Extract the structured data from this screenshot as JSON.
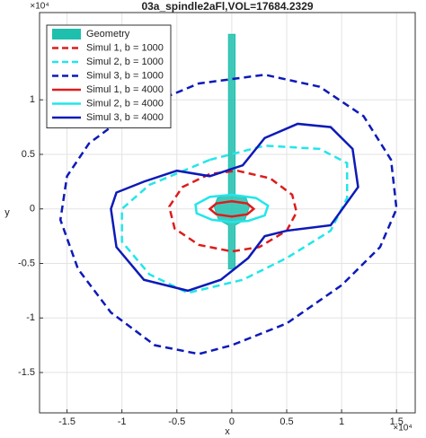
{
  "chart_data": {
    "type": "line",
    "title": "03a_spindle2aFl,VOL=17684.2329",
    "xlabel": "x",
    "ylabel": "y",
    "x_exponent": "×10⁴",
    "y_exponent": "×10⁴",
    "xlim": [
      -1.75,
      1.67
    ],
    "ylim": [
      -1.87,
      1.8
    ],
    "xticks": [
      -1.5,
      -1,
      -0.5,
      0,
      0.5,
      1,
      1.5
    ],
    "yticks": [
      -1.5,
      -1,
      -0.5,
      0,
      0.5,
      1
    ],
    "grid": true,
    "legend": "northwest",
    "series": [
      {
        "name": "Geometry",
        "color": "#1fbfae",
        "fill": true,
        "linestyle": "solid",
        "x": [
          -0.03,
          0.03,
          0.03,
          0.13,
          0.16,
          0.12,
          0.03,
          0.03,
          -0.03,
          -0.03,
          -0.12,
          -0.16,
          -0.13,
          -0.03
        ],
        "values": [
          1.6,
          1.6,
          0.13,
          0.1,
          0.02,
          -0.1,
          -0.15,
          -0.55,
          -0.55,
          -0.15,
          -0.1,
          0.02,
          0.1,
          0.13
        ]
      },
      {
        "name": "Simul 1, b = 1000",
        "color": "#dd1c1c",
        "linestyle": "dashed",
        "x": [
          0.05,
          0.35,
          0.55,
          0.59,
          0.5,
          0.25,
          0.0,
          -0.3,
          -0.52,
          -0.57,
          -0.45,
          -0.2
        ],
        "values": [
          0.35,
          0.28,
          0.13,
          -0.03,
          -0.2,
          -0.35,
          -0.39,
          -0.33,
          -0.18,
          0.02,
          0.2,
          0.32
        ]
      },
      {
        "name": "Simul 2, b = 1000",
        "color": "#22e6ea",
        "linestyle": "dashed",
        "x": [
          -0.2,
          0.3,
          0.8,
          1.05,
          1.05,
          0.9,
          0.5,
          0.1,
          -0.4,
          -0.75,
          -1.0,
          -1.0,
          -0.75
        ],
        "values": [
          0.45,
          0.58,
          0.55,
          0.42,
          0.1,
          -0.2,
          -0.45,
          -0.65,
          -0.77,
          -0.6,
          -0.3,
          0.0,
          0.22
        ]
      },
      {
        "name": "Simul 3, b = 1000",
        "color": "#0d1ab8",
        "linestyle": "dashed",
        "x": [
          -0.9,
          -0.3,
          0.3,
          0.8,
          1.2,
          1.45,
          1.5,
          1.35,
          1.0,
          0.5,
          0.0,
          -0.3,
          -0.7,
          -1.1,
          -1.4,
          -1.56,
          -1.5,
          -1.3
        ],
        "values": [
          0.9,
          1.15,
          1.23,
          1.12,
          0.85,
          0.45,
          0.0,
          -0.35,
          -0.7,
          -1.05,
          -1.25,
          -1.33,
          -1.25,
          -0.95,
          -0.55,
          -0.1,
          0.3,
          0.6
        ]
      },
      {
        "name": "Simul 1, b = 4000",
        "color": "#dd1c1c",
        "linestyle": "solid",
        "x": [
          0.0,
          0.14,
          0.2,
          0.14,
          0.0,
          -0.14,
          -0.2,
          -0.14
        ],
        "values": [
          0.07,
          0.05,
          0.0,
          -0.05,
          -0.07,
          -0.05,
          0.0,
          0.05
        ]
      },
      {
        "name": "Simul 2, b = 4000",
        "color": "#22e6ea",
        "linestyle": "solid",
        "x": [
          0.0,
          0.22,
          0.33,
          0.3,
          0.15,
          0.0,
          -0.18,
          -0.32,
          -0.33,
          -0.2
        ],
        "values": [
          0.13,
          0.1,
          0.03,
          -0.06,
          -0.11,
          -0.12,
          -0.1,
          -0.04,
          0.04,
          0.11
        ]
      },
      {
        "name": "Simul 3, b = 4000",
        "color": "#0d1ab8",
        "linestyle": "solid",
        "x": [
          -1.1,
          -1.05,
          -0.8,
          -0.5,
          -0.2,
          0.1,
          0.3,
          0.6,
          0.9,
          1.1,
          1.15,
          0.9,
          0.5,
          0.3,
          0.15,
          -0.1,
          -0.4,
          -0.8,
          -1.05
        ],
        "values": [
          0.0,
          0.15,
          0.25,
          0.35,
          0.3,
          0.4,
          0.65,
          0.78,
          0.75,
          0.55,
          0.2,
          -0.15,
          -0.2,
          -0.25,
          -0.45,
          -0.65,
          -0.75,
          -0.65,
          -0.35
        ]
      }
    ]
  }
}
